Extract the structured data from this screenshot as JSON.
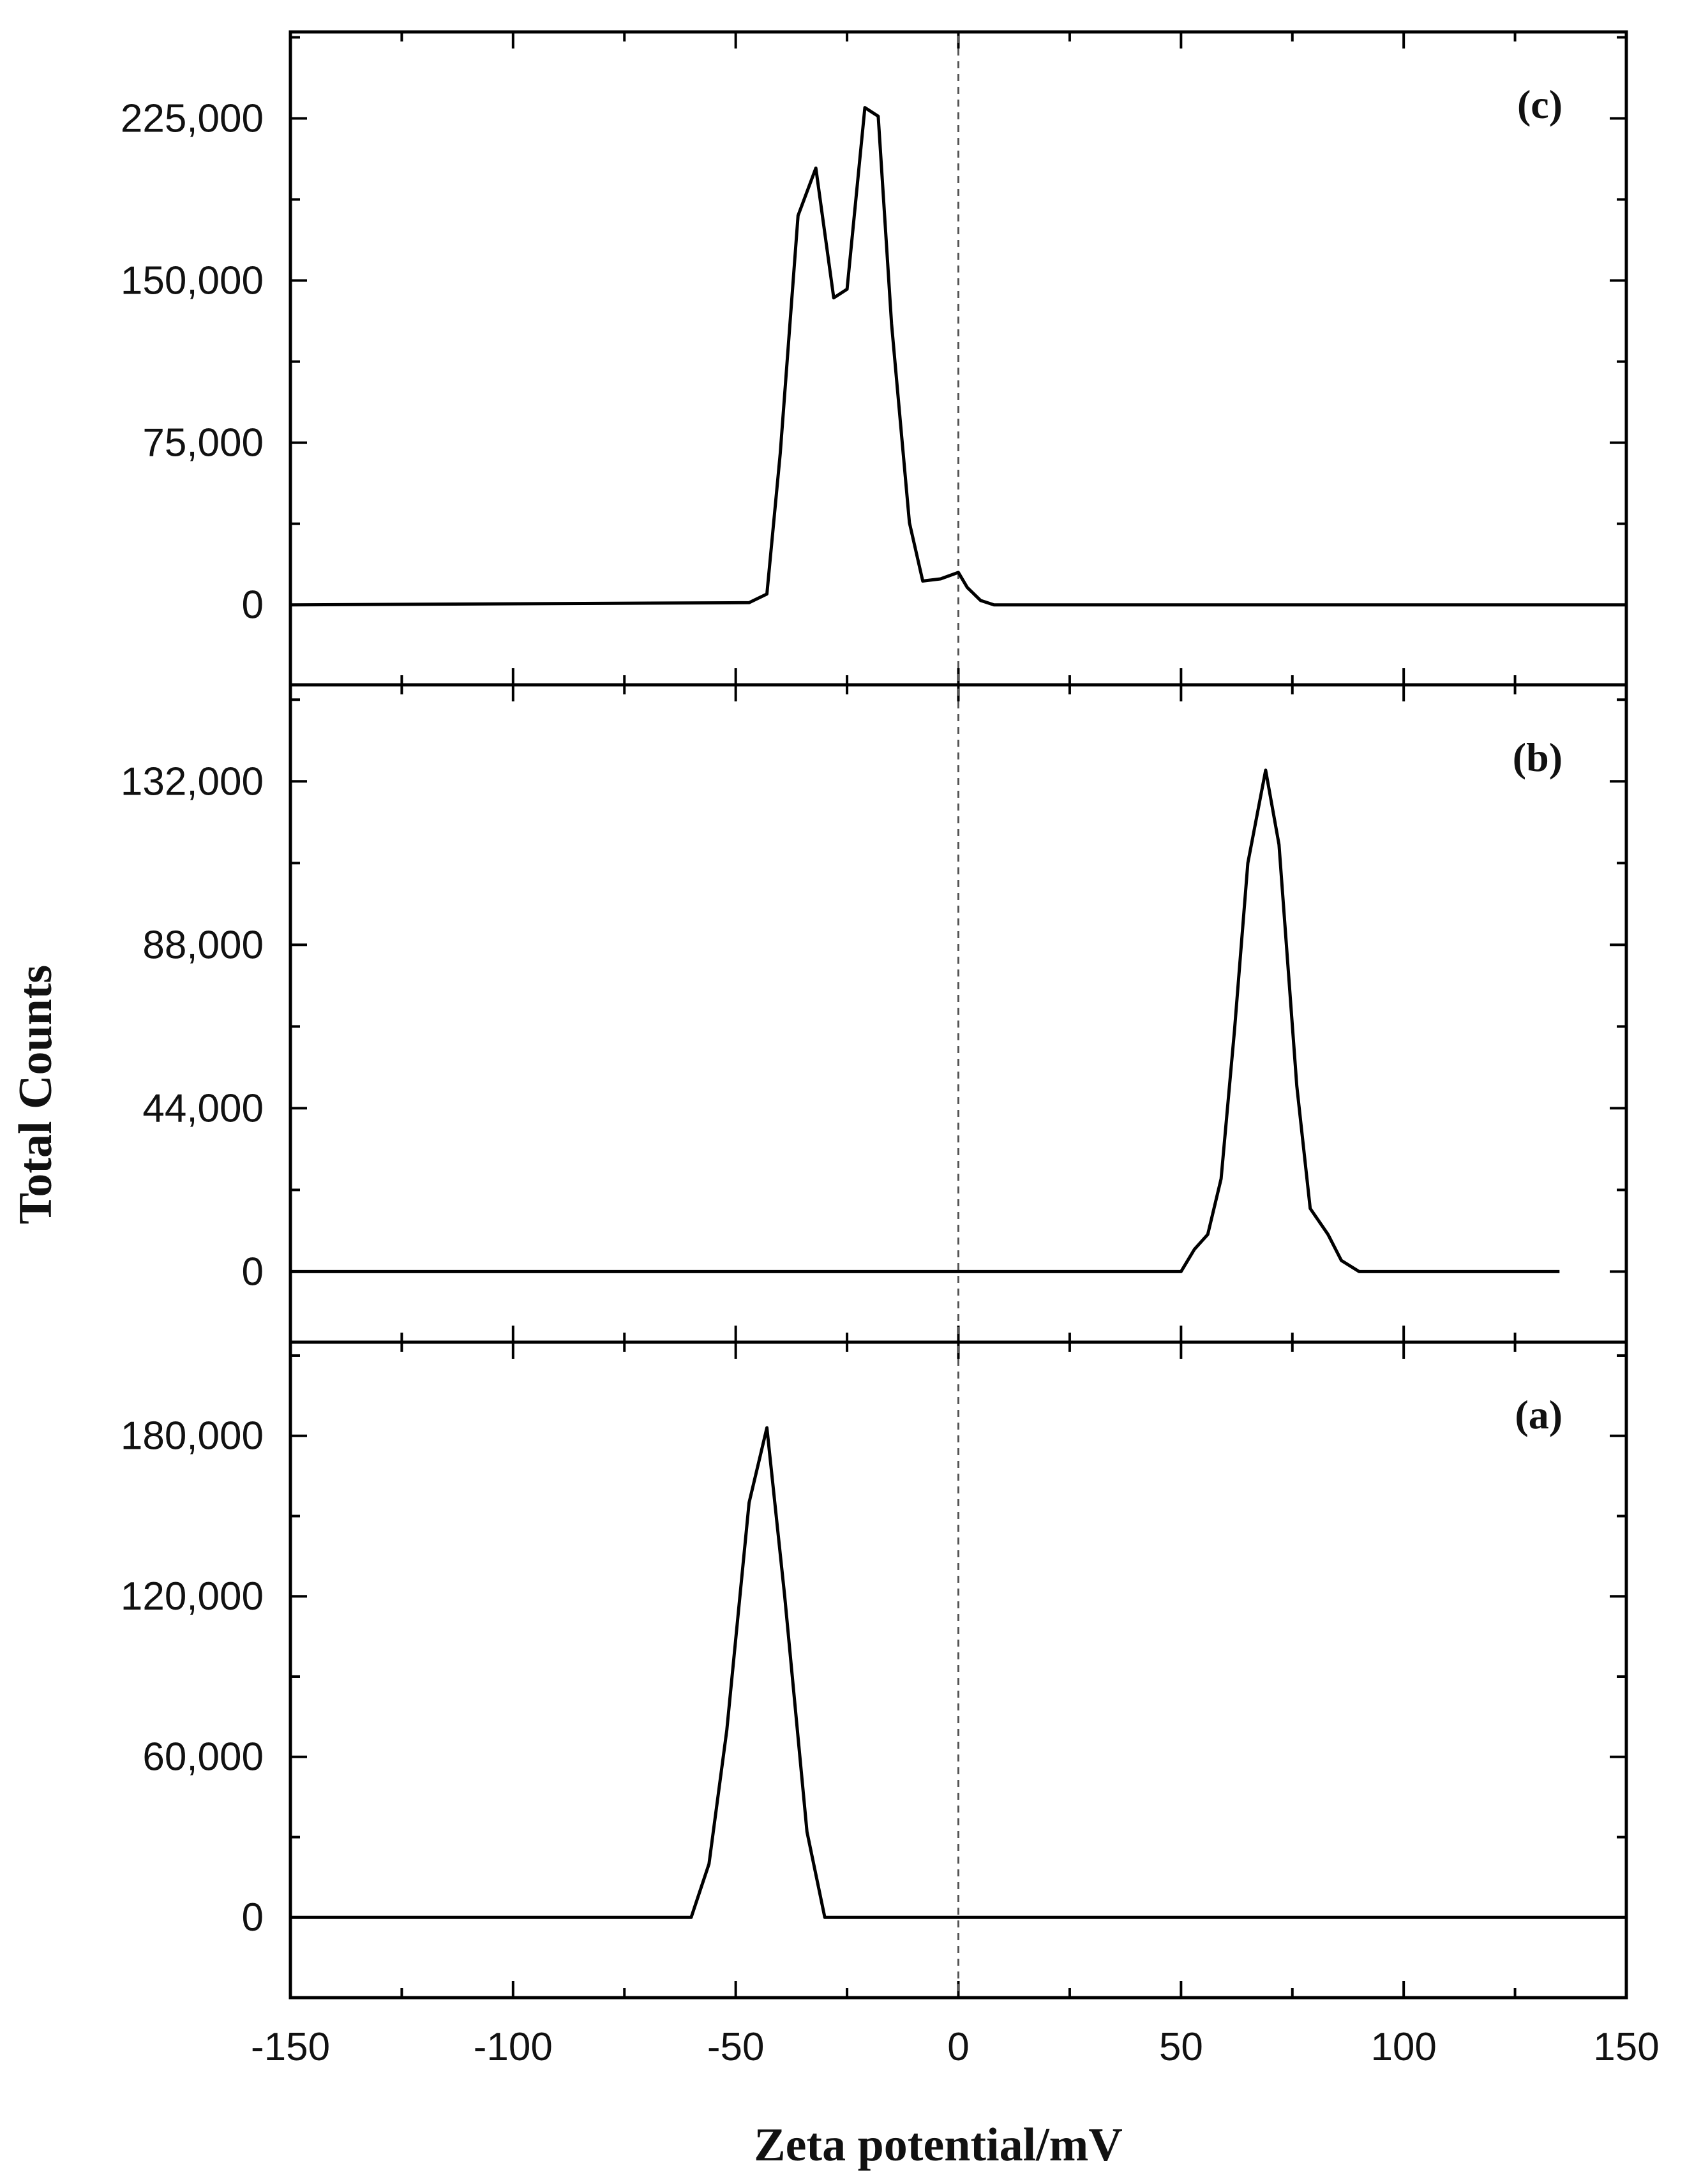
{
  "chart_data": [
    {
      "type": "line",
      "panel_label": "(c)",
      "xlim": [
        -150,
        150
      ],
      "ylim": [
        -37000,
        265000
      ],
      "yticks": [
        0,
        75000,
        150000,
        225000
      ],
      "ytick_labels": [
        "0",
        "75,000",
        "150,000",
        "225,000"
      ],
      "x": [
        -150,
        -47,
        -43,
        -40,
        -36,
        -32,
        -28,
        -25,
        -21,
        -18,
        -15,
        -11,
        -8,
        -4,
        0,
        2,
        5,
        8,
        150
      ],
      "y": [
        0,
        1000,
        5000,
        70000,
        180000,
        202000,
        142000,
        146000,
        230000,
        226000,
        130000,
        38000,
        11000,
        12000,
        15000,
        8000,
        2000,
        0,
        0
      ]
    },
    {
      "type": "line",
      "panel_label": "(b)",
      "xlim": [
        -150,
        150
      ],
      "ylim": [
        -19000,
        158000
      ],
      "yticks": [
        0,
        44000,
        88000,
        132000
      ],
      "ytick_labels": [
        "0",
        "44,000",
        "88,000",
        "132,000"
      ],
      "x": [
        -150,
        50,
        53,
        56,
        59,
        62,
        65,
        69,
        72,
        76,
        79,
        83,
        86,
        90,
        135
      ],
      "y": [
        0,
        0,
        6000,
        10000,
        25000,
        65000,
        110000,
        135000,
        115000,
        50000,
        17000,
        10000,
        3000,
        0,
        0
      ]
    },
    {
      "type": "line",
      "panel_label": "(a)",
      "xlim": [
        -150,
        150
      ],
      "ylim": [
        -30000,
        215000
      ],
      "yticks": [
        0,
        60000,
        120000,
        180000
      ],
      "ytick_labels": [
        "0",
        "60,000",
        "120,000",
        "180,000"
      ],
      "x": [
        -150,
        -60,
        -56,
        -52,
        -47,
        -43,
        -39,
        -34,
        -30,
        150
      ],
      "y": [
        0,
        0,
        20000,
        70000,
        155000,
        183000,
        120000,
        32000,
        0,
        0
      ]
    }
  ],
  "xaxis": {
    "label": "Zeta potential/mV",
    "ticks": [
      -150,
      -100,
      -50,
      0,
      50,
      100,
      150
    ],
    "tick_labels": [
      "-150",
      "-100",
      "-50",
      "0",
      "50",
      "100",
      "150"
    ],
    "minor_step": 25
  },
  "yaxis": {
    "label": "Total Counts"
  },
  "reference_line": {
    "x": 0,
    "style": "dashed"
  },
  "colors": {
    "line": "#000000",
    "axis": "#000000",
    "reference": "#555555"
  }
}
